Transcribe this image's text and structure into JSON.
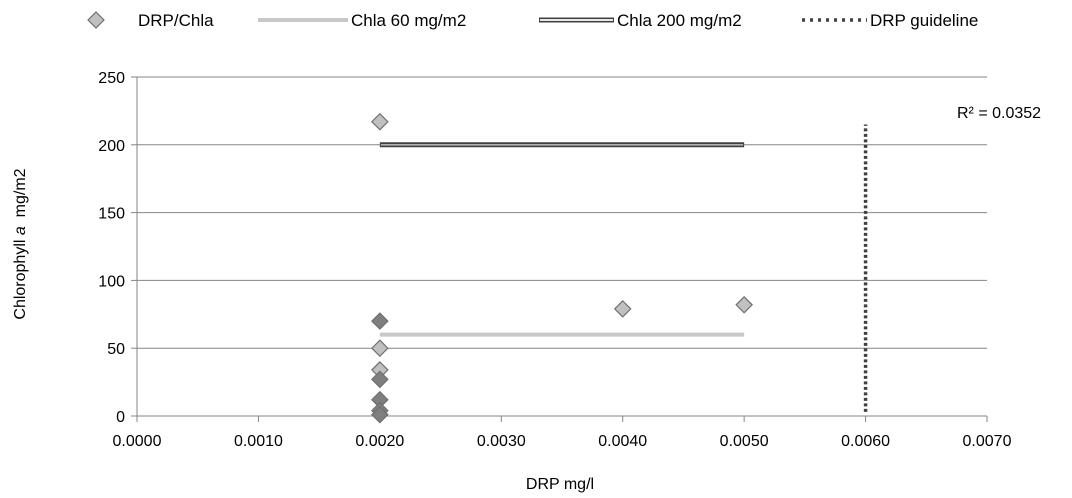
{
  "chart_data": {
    "type": "scatter",
    "xlabel": "DRP mg/l",
    "ylabel_prefix": "Chlorophyll ",
    "ylabel_italic": "a",
    "ylabel_suffix": "  mg/m2",
    "xlim": [
      0,
      0.007
    ],
    "ylim": [
      0,
      250
    ],
    "x_ticks": [
      "0.0000",
      "0.0010",
      "0.0020",
      "0.0030",
      "0.0040",
      "0.0050",
      "0.0060",
      "0.0070"
    ],
    "y_ticks": [
      "0",
      "50",
      "100",
      "150",
      "200",
      "250"
    ],
    "grid": "horizontal",
    "legend_position": "top",
    "annotation": "R² = 0.0352",
    "legend": [
      {
        "label": "DRP/Chla",
        "kind": "marker"
      },
      {
        "label": "Chla 60 mg/m2",
        "kind": "line-light"
      },
      {
        "label": "Chla 200 mg/m2",
        "kind": "line-double"
      },
      {
        "label": "DRP guideline",
        "kind": "line-dotted"
      }
    ],
    "series": [
      {
        "name": "DRP/Chla",
        "points": [
          {
            "x": 0.002,
            "y": 217,
            "shade": "light"
          },
          {
            "x": 0.002,
            "y": 70,
            "shade": "dark"
          },
          {
            "x": 0.002,
            "y": 50,
            "shade": "light"
          },
          {
            "x": 0.002,
            "y": 34,
            "shade": "light"
          },
          {
            "x": 0.002,
            "y": 27,
            "shade": "dark"
          },
          {
            "x": 0.002,
            "y": 12,
            "shade": "dark"
          },
          {
            "x": 0.002,
            "y": 4,
            "shade": "dark"
          },
          {
            "x": 0.002,
            "y": 1,
            "shade": "dark"
          },
          {
            "x": 0.004,
            "y": 79,
            "shade": "light"
          },
          {
            "x": 0.005,
            "y": 82,
            "shade": "light"
          }
        ]
      },
      {
        "name": "Chla 60 mg/m2",
        "x": [
          0.002,
          0.005
        ],
        "y": [
          60,
          60
        ]
      },
      {
        "name": "Chla 200 mg/m2",
        "x": [
          0.002,
          0.005
        ],
        "y": [
          200,
          200
        ]
      },
      {
        "name": "DRP guideline",
        "x": [
          0.006,
          0.006
        ],
        "y": [
          3,
          215
        ]
      }
    ],
    "colors": {
      "marker_light": "#c0c0c0",
      "marker_dark": "#7f7f7f",
      "marker_stroke": "#6f6f6f",
      "line_60": "#c8c8c8",
      "line_200": "#404040",
      "guideline": "#404040",
      "grid": "#868686"
    }
  }
}
